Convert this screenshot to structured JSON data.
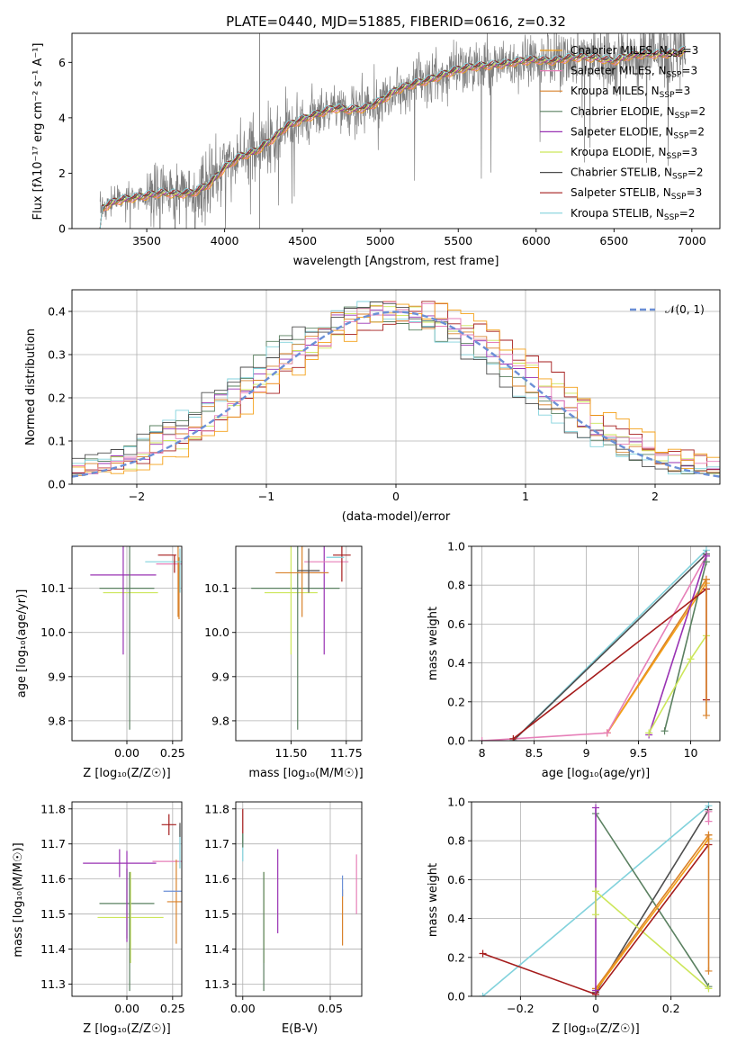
{
  "figure_title": "PLATE=0440, MJD=51885, FIBERID=0616, z=0.32",
  "colors": {
    "chabrier_miles": "#f4a018",
    "salpeter_miles": "#e67fb8",
    "kroupa_miles": "#d9822b",
    "chabrier_elodie": "#5a8060",
    "salpeter_elodie": "#9932b3",
    "kroupa_elodie": "#cce65a",
    "chabrier_stelib": "#4d4d4d",
    "salpeter_stelib": "#a51c1c",
    "kroupa_stelib": "#82d2dc",
    "data": "#7f7f7f",
    "normal": "#6b8fd6"
  },
  "chart_data": [
    {
      "id": "spectrum",
      "type": "line",
      "title": "PLATE=0440, MJD=51885, FIBERID=0616, z=0.32",
      "xlabel": "wavelength [Angstrom, rest frame]",
      "ylabel": "Flux [f_λ 10^-17 erg cm^-2 s^-1 A^-1]",
      "xlim": [
        3020,
        7180
      ],
      "ylim": [
        0,
        7.05
      ],
      "xticks": [
        3500,
        4000,
        4500,
        5000,
        5500,
        6000,
        6500,
        7000
      ],
      "yticks": [
        0,
        2,
        4,
        6
      ],
      "grid": false,
      "legend_position": "top-right",
      "x": [
        3200,
        3300,
        3400,
        3500,
        3600,
        3700,
        3800,
        3900,
        4000,
        4100,
        4200,
        4300,
        4400,
        4500,
        4600,
        4700,
        4800,
        4900,
        5000,
        5100,
        5200,
        5300,
        5400,
        5500,
        5600,
        5700,
        5800,
        5900,
        6000,
        6100,
        6200,
        6300,
        6400,
        6500,
        6600,
        6700,
        6800,
        6900,
        7000
      ],
      "model_flux": [
        0.7,
        1.0,
        1.1,
        1.2,
        1.3,
        1.25,
        1.3,
        1.6,
        2.2,
        2.6,
        2.8,
        3.2,
        3.7,
        3.95,
        4.15,
        4.35,
        4.3,
        4.35,
        4.6,
        5.0,
        5.2,
        5.35,
        5.55,
        5.75,
        5.85,
        5.9,
        5.95,
        6.05,
        6.1,
        6.05,
        6.15,
        6.2,
        6.15,
        6.05,
        6.25,
        6.3,
        6.3,
        6.35,
        6.5
      ],
      "legend": [
        "Chabrier MILES, N_SSP=3",
        "Salpeter MILES, N_SSP=3",
        "Kroupa MILES, N_SSP=3",
        "Chabrier ELODIE, N_SSP=2",
        "Salpeter ELODIE, N_SSP=2",
        "Kroupa ELODIE, N_SSP=3",
        "Chabrier STELIB, N_SSP=2",
        "Salpeter STELIB, N_SSP=3",
        "Kroupa STELIB, N_SSP=2"
      ],
      "legend_colors": [
        "chabrier_miles",
        "salpeter_miles",
        "kroupa_miles",
        "chabrier_elodie",
        "salpeter_elodie",
        "kroupa_elodie",
        "chabrier_stelib",
        "salpeter_stelib",
        "kroupa_stelib"
      ]
    },
    {
      "id": "residuals",
      "type": "line",
      "xlabel": "(data-model)/error",
      "ylabel": "Normed distribution",
      "xlim": [
        -2.5,
        2.5
      ],
      "ylim": [
        0,
        0.45
      ],
      "xticks": [
        -2,
        -1,
        0,
        1,
        2
      ],
      "yticks": [
        0.0,
        0.1,
        0.2,
        0.3,
        0.4
      ],
      "grid": true,
      "legend": [
        "𝒩(0, 1)"
      ],
      "legend_position": "top-right"
    },
    {
      "id": "age_vs_Z",
      "type": "scatter",
      "xlabel": "Z [log₁₀(Z/Z☉)]",
      "ylabel": "age  [log₁₀(age/yr)]",
      "xlim": [
        -0.3,
        0.3
      ],
      "ylim": [
        9.755,
        10.195
      ],
      "xticks": [
        0.0,
        0.25
      ],
      "xtick_labels": [
        "0.00",
        "0.25"
      ],
      "yticks": [
        9.8,
        9.9,
        10.0,
        10.1
      ],
      "grid": true
    },
    {
      "id": "age_vs_mass",
      "type": "scatter",
      "xlabel": "mass [log₁₀(M/M☉)]",
      "ylabel": "",
      "xlim": [
        11.25,
        11.82
      ],
      "ylim": [
        9.755,
        10.195
      ],
      "xticks": [
        11.5,
        11.75
      ],
      "xtick_labels": [
        "11.50",
        "11.75"
      ],
      "yticks": [
        9.8,
        9.9,
        10.0,
        10.1
      ],
      "grid": true
    },
    {
      "id": "weight_vs_age",
      "type": "line",
      "xlabel": "age  [log₁₀(age/yr)]",
      "ylabel": "mass weight",
      "xlim": [
        7.9,
        10.28
      ],
      "ylim": [
        0,
        1.0
      ],
      "xticks": [
        8.0,
        8.5,
        9.0,
        9.5,
        10.0
      ],
      "yticks": [
        0.0,
        0.2,
        0.4,
        0.6,
        0.8,
        1.0
      ],
      "grid": true,
      "series": [
        {
          "color": "kroupa_stelib",
          "x": [
            8.3,
            10.15
          ],
          "y": [
            0.0,
            0.98
          ]
        },
        {
          "color": "chabrier_stelib",
          "x": [
            8.3,
            10.15
          ],
          "y": [
            0.0,
            0.96
          ]
        },
        {
          "color": "kroupa_miles",
          "x": [
            9.2,
            10.15
          ],
          "y": [
            0.04,
            0.83
          ]
        },
        {
          "color": "chabrier_miles",
          "x": [
            9.2,
            10.15
          ],
          "y": [
            0.04,
            0.81
          ]
        },
        {
          "color": "salpeter_miles",
          "x": [
            8.0,
            9.2,
            10.15
          ],
          "y": [
            0.0,
            0.04,
            0.95
          ]
        },
        {
          "color": "salpeter_elodie",
          "x": [
            9.6,
            10.15
          ],
          "y": [
            0.03,
            0.95
          ]
        },
        {
          "color": "chabrier_elodie",
          "x": [
            9.75,
            10.15
          ],
          "y": [
            0.05,
            0.92
          ]
        },
        {
          "color": "kroupa_elodie",
          "x": [
            9.6,
            10.0,
            10.15
          ],
          "y": [
            0.04,
            0.42,
            0.54
          ]
        },
        {
          "color": "salpeter_stelib",
          "x": [
            8.3,
            10.15,
            10.15
          ],
          "y": [
            0.01,
            0.78,
            0.21
          ]
        },
        {
          "color": "kroupa_miles",
          "x": [
            10.15,
            10.15
          ],
          "y": [
            0.83,
            0.13
          ]
        }
      ]
    },
    {
      "id": "mass_vs_Z",
      "type": "scatter",
      "xlabel": "Z [log₁₀(Z/Z☉)]",
      "ylabel": "mass [log₁₀(M/M☉)]",
      "xlim": [
        -0.3,
        0.3
      ],
      "ylim": [
        11.265,
        11.82
      ],
      "xticks": [
        0.0,
        0.25
      ],
      "xtick_labels": [
        "0.00",
        "0.25"
      ],
      "yticks": [
        11.3,
        11.4,
        11.5,
        11.6,
        11.7,
        11.8
      ],
      "grid": true
    },
    {
      "id": "mass_vs_EBV",
      "type": "scatter",
      "xlabel": "E(B-V)",
      "ylabel": "",
      "xlim": [
        -0.004,
        0.068
      ],
      "ylim": [
        11.265,
        11.82
      ],
      "xticks": [
        0.0,
        0.05
      ],
      "xtick_labels": [
        "0.00",
        "0.05"
      ],
      "yticks": [
        11.3,
        11.4,
        11.5,
        11.6,
        11.7,
        11.8
      ],
      "grid": true
    },
    {
      "id": "weight_vs_Z",
      "type": "line",
      "xlabel": "Z [log₁₀(Z/Z☉)]",
      "ylabel": "mass weight",
      "xlim": [
        -0.33,
        0.33
      ],
      "ylim": [
        0,
        1.0
      ],
      "xticks": [
        -0.2,
        0.0,
        0.2
      ],
      "yticks": [
        0.0,
        0.2,
        0.4,
        0.6,
        0.8,
        1.0
      ],
      "grid": true,
      "series": [
        {
          "color": "kroupa_stelib",
          "x": [
            -0.3,
            0.3
          ],
          "y": [
            0.0,
            0.98
          ]
        },
        {
          "color": "chabrier_stelib",
          "x": [
            0.0,
            0.3
          ],
          "y": [
            0.02,
            0.96
          ]
        },
        {
          "color": "chabrier_elodie",
          "x": [
            0.0,
            0.3
          ],
          "y": [
            0.94,
            0.05
          ]
        },
        {
          "color": "kroupa_elodie",
          "x": [
            0.0,
            0.3
          ],
          "y": [
            0.54,
            0.04
          ]
        },
        {
          "color": "kroupa_miles",
          "x": [
            0.0,
            0.3
          ],
          "y": [
            0.04,
            0.83
          ]
        },
        {
          "color": "chabrier_miles",
          "x": [
            0.0,
            0.3
          ],
          "y": [
            0.03,
            0.81
          ]
        },
        {
          "color": "salpeter_stelib",
          "x": [
            -0.3,
            0.0,
            0.3
          ],
          "y": [
            0.22,
            0.01,
            0.78
          ]
        },
        {
          "color": "salpeter_elodie",
          "x": [
            0.0,
            0.0
          ],
          "y": [
            0.03,
            0.97
          ]
        },
        {
          "color": "kroupa_elodie",
          "x": [
            0.0,
            0.0
          ],
          "y": [
            0.42,
            0.54
          ]
        },
        {
          "color": "kroupa_miles",
          "x": [
            0.3,
            0.3
          ],
          "y": [
            0.83,
            0.13
          ]
        },
        {
          "color": "salpeter_miles",
          "x": [
            0.3,
            0.3
          ],
          "y": [
            0.9,
            0.95
          ]
        }
      ]
    }
  ]
}
